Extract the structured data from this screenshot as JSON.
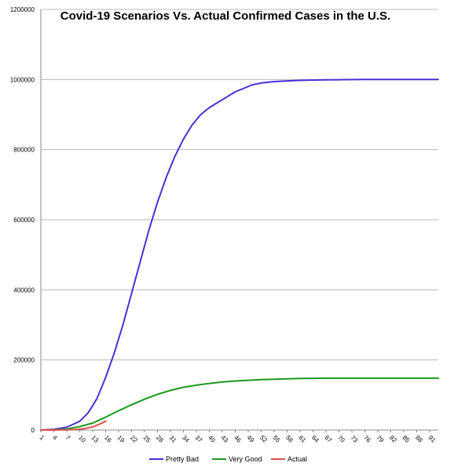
{
  "chart_data": {
    "type": "line",
    "title": "Covid-19 Scenarios Vs. Actual Confirmed Cases in the U.S.",
    "xlabel": "",
    "ylabel": "",
    "x_range": [
      1,
      93
    ],
    "ylim": [
      0,
      1200000
    ],
    "y_ticks": [
      "0",
      "200000",
      "400000",
      "600000",
      "800000",
      "1000000",
      "1200000"
    ],
    "y_tick_values": [
      0,
      200000,
      400000,
      600000,
      800000,
      1000000,
      1200000
    ],
    "x_ticks": [
      "1",
      "4",
      "7",
      "10",
      "13",
      "16",
      "19",
      "22",
      "25",
      "28",
      "31",
      "34",
      "37",
      "40",
      "43",
      "46",
      "49",
      "52",
      "55",
      "58",
      "61",
      "64",
      "67",
      "70",
      "73",
      "76",
      "79",
      "82",
      "85",
      "88",
      "91"
    ],
    "grid": true,
    "legend_position": "bottom",
    "series": [
      {
        "name": "Pretty Bad",
        "color": "#4B2FD6",
        "x": [
          1,
          4,
          7,
          10,
          12,
          14,
          16,
          18,
          20,
          22,
          24,
          26,
          28,
          30,
          32,
          34,
          36,
          38,
          40,
          42,
          44,
          46,
          48,
          50,
          52,
          55,
          58,
          61,
          64,
          67,
          70,
          73,
          76,
          79,
          82,
          85,
          88,
          91,
          93
        ],
        "values": [
          0,
          2000,
          8000,
          25000,
          50000,
          90000,
          150000,
          220000,
          300000,
          390000,
          480000,
          570000,
          650000,
          720000,
          780000,
          830000,
          870000,
          900000,
          920000,
          935000,
          950000,
          965000,
          975000,
          985000,
          990000,
          994000,
          996000,
          997500,
          998500,
          999000,
          999500,
          999800,
          1000000,
          1000000,
          1000000,
          1000000,
          1000000,
          1000000,
          1000000
        ]
      },
      {
        "name": "Very Good",
        "color": "#1A9A1A",
        "x": [
          1,
          4,
          7,
          10,
          13,
          16,
          19,
          22,
          25,
          28,
          31,
          34,
          37,
          40,
          43,
          46,
          49,
          52,
          55,
          58,
          61,
          64,
          67,
          70,
          73,
          76,
          79,
          82,
          85,
          88,
          91,
          93
        ],
        "values": [
          0,
          500,
          3000,
          10000,
          20000,
          37000,
          55000,
          72000,
          88000,
          102000,
          113000,
          122000,
          128000,
          133000,
          137000,
          140000,
          142000,
          144000,
          145000,
          146000,
          147000,
          147500,
          148000,
          148000,
          148000,
          148000,
          148000,
          148000,
          148000,
          148000,
          148000,
          148000
        ]
      },
      {
        "name": "Actual",
        "color": "#D9534F",
        "x": [
          1,
          4,
          7,
          9,
          11,
          13,
          14,
          15,
          16
        ],
        "values": [
          0,
          100,
          500,
          1500,
          4000,
          9000,
          14000,
          19000,
          25000
        ]
      }
    ]
  }
}
